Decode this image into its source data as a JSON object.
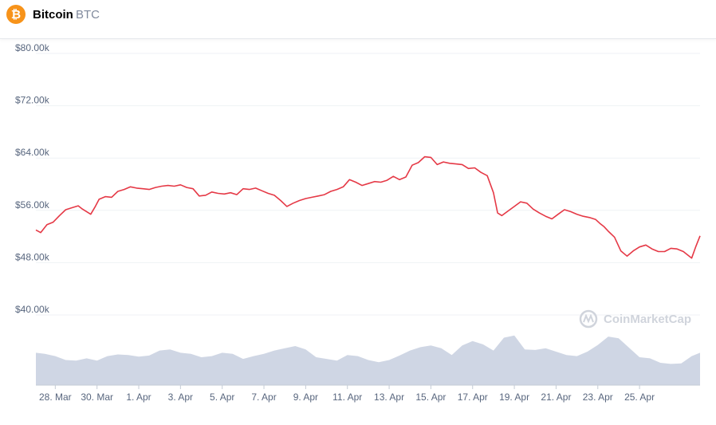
{
  "header": {
    "coin_name": "Bitcoin",
    "coin_symbol": "BTC",
    "logo_icon": "bitcoin-icon",
    "logo_color": "#f7931a"
  },
  "watermark": {
    "text": "CoinMarketCap",
    "icon": "coinmarketcap-icon"
  },
  "chart_data": {
    "type": "line",
    "title": "",
    "xlabel": "",
    "ylabel": "",
    "y_ticks": [
      "$40.00k",
      "$48.00k",
      "$56.00k",
      "$64.00k",
      "$72.00k",
      "$80.00k"
    ],
    "y_tick_values": [
      40000,
      48000,
      56000,
      64000,
      72000,
      80000
    ],
    "ylim": [
      40000,
      80000
    ],
    "x_ticks": [
      "28. Mar",
      "30. Mar",
      "1. Apr",
      "3. Apr",
      "5. Apr",
      "7. Apr",
      "9. Apr",
      "11. Apr",
      "13. Apr",
      "15. Apr",
      "17. Apr",
      "19. Apr",
      "21. Apr",
      "23. Apr",
      "25. Apr"
    ],
    "x_tick_days": [
      28,
      30,
      32,
      34,
      36,
      38,
      40,
      42,
      44,
      46,
      48,
      50,
      52,
      54,
      56
    ],
    "xlim": [
      27.07,
      58.9
    ],
    "grid": "horizontal",
    "colors": {
      "price_line": "#e53946",
      "volume_fill": "#cfd6e4",
      "grid": "#eff2f5"
    },
    "series": [
      {
        "kind": "price",
        "x": [
          27.07,
          27.3,
          27.6,
          27.9,
          28.2,
          28.5,
          28.8,
          29.1,
          29.3,
          29.5,
          29.7,
          29.9,
          30.1,
          30.4,
          30.7,
          31.0,
          31.3,
          31.6,
          31.9,
          32.2,
          32.5,
          32.8,
          33.1,
          33.4,
          33.7,
          34.0,
          34.3,
          34.6,
          34.9,
          35.2,
          35.5,
          35.8,
          36.1,
          36.4,
          36.7,
          37.0,
          37.3,
          37.6,
          37.9,
          38.2,
          38.5,
          38.8,
          39.1,
          39.4,
          39.7,
          40.0,
          40.3,
          40.6,
          40.9,
          41.2,
          41.5,
          41.8,
          42.1,
          42.4,
          42.7,
          43.0,
          43.3,
          43.6,
          43.9,
          44.2,
          44.5,
          44.8,
          45.1,
          45.4,
          45.7,
          46.0,
          46.3,
          46.6,
          46.9,
          47.2,
          47.5,
          47.8,
          48.1,
          48.4,
          48.7,
          49.0,
          49.2,
          49.4,
          49.7,
          50.0,
          50.3,
          50.6,
          50.9,
          51.2,
          51.5,
          51.8,
          52.1,
          52.4,
          52.7,
          53.0,
          53.3,
          53.6,
          53.9,
          54.1,
          54.3,
          54.5,
          54.8,
          55.1,
          55.4,
          55.7,
          56.0,
          56.3,
          56.6,
          56.9,
          57.2,
          57.5,
          57.8,
          58.1,
          58.3,
          58.5,
          58.7,
          58.9
        ],
        "values": [
          53000,
          52600,
          53800,
          54200,
          55200,
          56100,
          56400,
          56700,
          56200,
          55800,
          55400,
          56500,
          57700,
          58100,
          58000,
          58900,
          59200,
          59600,
          59400,
          59300,
          59200,
          59500,
          59700,
          59800,
          59700,
          59900,
          59500,
          59300,
          58200,
          58300,
          58800,
          58600,
          58500,
          58700,
          58400,
          59300,
          59200,
          59400,
          59000,
          58600,
          58300,
          57500,
          56600,
          57100,
          57500,
          57800,
          58000,
          58200,
          58400,
          58900,
          59200,
          59600,
          60700,
          60300,
          59800,
          60100,
          60400,
          60300,
          60600,
          61200,
          60700,
          61100,
          62900,
          63300,
          64200,
          64100,
          63000,
          63400,
          63200,
          63100,
          63000,
          62400,
          62500,
          61800,
          61300,
          58700,
          55600,
          55200,
          55900,
          56600,
          57300,
          57100,
          56200,
          55600,
          55100,
          54700,
          55400,
          56100,
          55800,
          55400,
          55100,
          54900,
          54600,
          54000,
          53500,
          52800,
          51900,
          49800,
          49000,
          49800,
          50400,
          50700,
          50100,
          49700,
          49700,
          50200,
          50100,
          49700,
          49200,
          48700,
          50500,
          52100
        ]
      },
      {
        "kind": "volume",
        "x": [
          27.07,
          27.5,
          28.0,
          28.5,
          29.0,
          29.5,
          30.0,
          30.5,
          31.0,
          31.5,
          32.0,
          32.5,
          33.0,
          33.5,
          34.0,
          34.5,
          35.0,
          35.5,
          36.0,
          36.5,
          37.0,
          37.5,
          38.0,
          38.5,
          39.0,
          39.5,
          40.0,
          40.5,
          41.0,
          41.5,
          42.0,
          42.5,
          43.0,
          43.5,
          44.0,
          44.5,
          45.0,
          45.5,
          46.0,
          46.5,
          47.0,
          47.5,
          48.0,
          48.5,
          49.0,
          49.5,
          50.0,
          50.5,
          51.0,
          51.5,
          52.0,
          52.5,
          53.0,
          53.5,
          54.0,
          54.5,
          55.0,
          55.5,
          56.0,
          56.5,
          57.0,
          57.5,
          58.0,
          58.5,
          58.9
        ],
        "values": [
          0.58,
          0.56,
          0.52,
          0.45,
          0.44,
          0.48,
          0.44,
          0.52,
          0.55,
          0.54,
          0.51,
          0.53,
          0.62,
          0.64,
          0.58,
          0.56,
          0.5,
          0.52,
          0.58,
          0.56,
          0.47,
          0.52,
          0.56,
          0.62,
          0.66,
          0.7,
          0.64,
          0.5,
          0.47,
          0.44,
          0.54,
          0.52,
          0.45,
          0.41,
          0.45,
          0.53,
          0.62,
          0.68,
          0.71,
          0.66,
          0.54,
          0.71,
          0.79,
          0.73,
          0.62,
          0.85,
          0.89,
          0.64,
          0.63,
          0.66,
          0.6,
          0.54,
          0.52,
          0.6,
          0.72,
          0.87,
          0.84,
          0.67,
          0.5,
          0.48,
          0.4,
          0.38,
          0.39,
          0.52,
          0.58
        ]
      }
    ]
  }
}
